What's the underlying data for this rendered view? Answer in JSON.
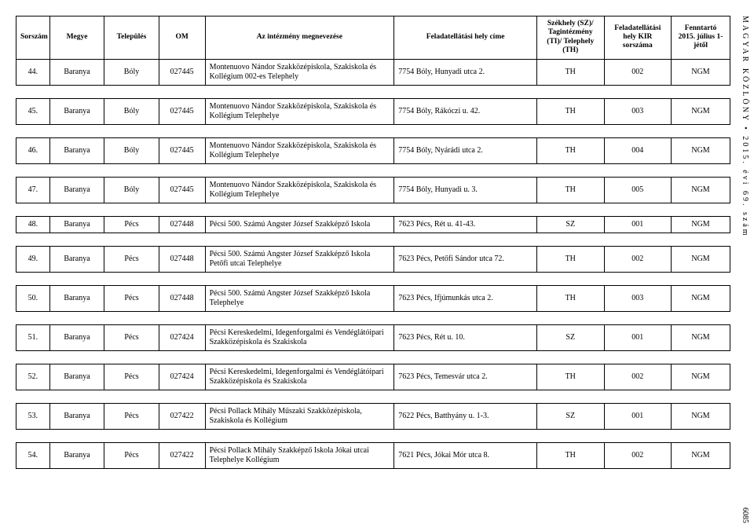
{
  "header": {
    "sorszam": "Sorszám",
    "megye": "Megye",
    "telepules": "Település",
    "om": "OM",
    "intezmeny": "Az intézmény megnevezése",
    "cim": "Feladatellátási hely címe",
    "szekhely": "Székhely (SZ)/ Tagintézmény (TI)/ Telephely (TH)",
    "kir": "Feladatellátási hely KIR sorszáma",
    "fenntarto": "Fenntartó 2015. július 1-jétől"
  },
  "rows": [
    {
      "sorszam": "44.",
      "megye": "Baranya",
      "telepules": "Bóly",
      "om": "027445",
      "intezmeny": "Montenuovo Nándor Szakközépiskola, Szakiskola és Kollégium 002-es Telephely",
      "cim": "7754 Bóly, Hunyadi utca 2.",
      "szekhely": "TH",
      "kir": "002",
      "fenntarto": "NGM"
    },
    {
      "sorszam": "45.",
      "megye": "Baranya",
      "telepules": "Bóly",
      "om": "027445",
      "intezmeny": "Montenuovo Nándor Szakközépiskola, Szakiskola és Kollégium Telephelye",
      "cim": "7754 Bóly, Rákóczi u. 42.",
      "szekhely": "TH",
      "kir": "003",
      "fenntarto": "NGM"
    },
    {
      "sorszam": "46.",
      "megye": "Baranya",
      "telepules": "Bóly",
      "om": "027445",
      "intezmeny": "Montenuovo Nándor Szakközépiskola, Szakiskola és Kollégium Telephelye",
      "cim": "7754 Bóly, Nyárádi utca 2.",
      "szekhely": "TH",
      "kir": "004",
      "fenntarto": "NGM"
    },
    {
      "sorszam": "47.",
      "megye": "Baranya",
      "telepules": "Bóly",
      "om": "027445",
      "intezmeny": "Montenuovo Nándor Szakközépiskola, Szakiskola és Kollégium Telephelye",
      "cim": "7754 Bóly, Hunyadi u. 3.",
      "szekhely": "TH",
      "kir": "005",
      "fenntarto": "NGM"
    },
    {
      "sorszam": "48.",
      "megye": "Baranya",
      "telepules": "Pécs",
      "om": "027448",
      "intezmeny": "Pécsi 500. Számú Angster József Szakképző Iskola",
      "cim": "7623 Pécs, Rét u. 41-43.",
      "szekhely": "SZ",
      "kir": "001",
      "fenntarto": "NGM"
    },
    {
      "sorszam": "49.",
      "megye": "Baranya",
      "telepules": "Pécs",
      "om": "027448",
      "intezmeny": "Pécsi 500. Számú Angster József Szakképző Iskola Petőfi utcai Telephelye",
      "cim": "7623 Pécs, Petőfi Sándor utca 72.",
      "szekhely": "TH",
      "kir": "002",
      "fenntarto": "NGM"
    },
    {
      "sorszam": "50.",
      "megye": "Baranya",
      "telepules": "Pécs",
      "om": "027448",
      "intezmeny": "Pécsi 500. Számú Angster József Szakképző Iskola Telephelye",
      "cim": "7623 Pécs, Ifjúmunkás utca 2.",
      "szekhely": "TH",
      "kir": "003",
      "fenntarto": "NGM"
    },
    {
      "sorszam": "51.",
      "megye": "Baranya",
      "telepules": "Pécs",
      "om": "027424",
      "intezmeny": "Pécsi Kereskedelmi, Idegenforgalmi és Vendéglátóipari Szakközépiskola és Szakiskola",
      "cim": "7623 Pécs, Rét u. 10.",
      "szekhely": "SZ",
      "kir": "001",
      "fenntarto": "NGM"
    },
    {
      "sorszam": "52.",
      "megye": "Baranya",
      "telepules": "Pécs",
      "om": "027424",
      "intezmeny": "Pécsi Kereskedelmi, Idegenforgalmi és Vendéglátóipari Szakközépiskola és Szakiskola",
      "cim": "7623 Pécs, Temesvár utca 2.",
      "szekhely": "TH",
      "kir": "002",
      "fenntarto": "NGM"
    },
    {
      "sorszam": "53.",
      "megye": "Baranya",
      "telepules": "Pécs",
      "om": "027422",
      "intezmeny": "Pécsi Pollack Mihály Műszaki Szakközépiskola, Szakiskola és Kollégium",
      "cim": "7622 Pécs, Batthyány u. 1-3.",
      "szekhely": "SZ",
      "kir": "001",
      "fenntarto": "NGM"
    },
    {
      "sorszam": "54.",
      "megye": "Baranya",
      "telepules": "Pécs",
      "om": "027422",
      "intezmeny": "Pécsi Pollack Mihály Szakképző Iskola Jókai utcai Telephelye Kollégium",
      "cim": "7621 Pécs, Jókai Mór utca 8.",
      "szekhely": "TH",
      "kir": "002",
      "fenntarto": "NGM"
    }
  ],
  "sidetext": "MAGYAR KÖZLÖNY • 2015. évi 69. szám",
  "pagenum": "6085"
}
